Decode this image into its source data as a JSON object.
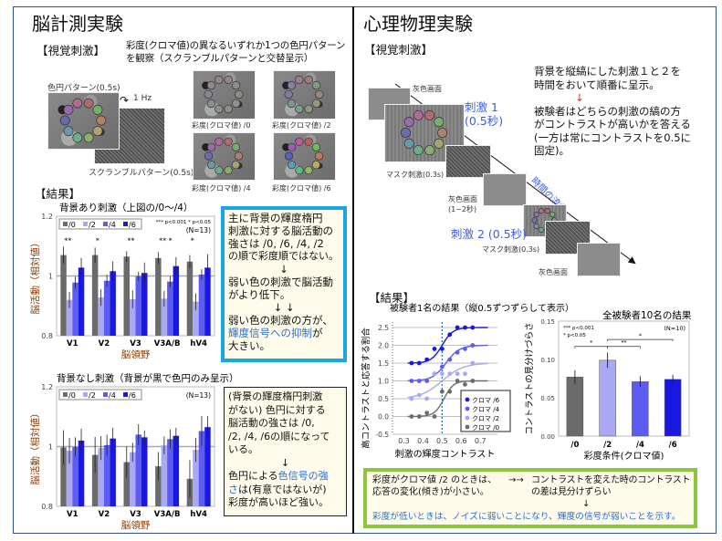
{
  "left": {
    "title": "脳計測実験",
    "stimulus_heading": "【視覚刺激】",
    "stimulus_desc_1": "彩度(クロマ値)の異なるいずれか1つの色円パターン",
    "stimulus_desc_2": "を観察（スクランブルパターンと交替呈示）",
    "color_pattern_label": "色円パターン(0.5s)",
    "frequency_label": "1 Hz",
    "scramble_label": "スクランブルパターン(0.5s)",
    "thumbnails": [
      "彩度(クロマ値) /0",
      "彩度(クロマ値) /2",
      "彩度(クロマ値) /4",
      "彩度(クロマ値) /6"
    ],
    "results_heading": "【結果】",
    "box1": {
      "line1": "主に背景の輝度楕円",
      "line2": "刺激に対する脳活動の",
      "line3": "強さは /0, /6, /4, /2",
      "line4": "の順で彩度順ではない。",
      "arrow1": "↓",
      "line5": "弱い色の刺激で脳活動",
      "line6": "がより低下。",
      "arrow2": "↓ ↓",
      "line7": "弱い色の刺激の方が、",
      "line8_blue": "輝度信号への抑制",
      "line8_rest": "が",
      "line9": "大きい。"
    },
    "box2": {
      "line1": "(背景の輝度楕円刺激",
      "line2": "がない) 色円に対する",
      "line3": "脳活動の強さは /0,",
      "line4": "/2, /4, /6の順になって",
      "line5": "いる。",
      "arrow": "↓",
      "line6_pre": "色円による",
      "line6_blue": "色信号の強",
      "line7_blue": "さ",
      "line7_rest": "は(有意ではないが)",
      "line8": "彩度が高いほど強い。"
    }
  },
  "right": {
    "title": "心理物理実験",
    "stimulus_heading": "【視覚刺激】",
    "desc1_1": "背景を縦縞にした刺激１と２を",
    "desc1_2": "時間をおいて順番に呈示。",
    "desc_arrow": "↓",
    "desc2_1": "被験者はどちらの刺激の縞の方",
    "desc2_2": "がコントラストが高いかを答える",
    "desc2_3": "(一方は常にコントラストを0.5に",
    "desc2_4": "固定)。",
    "seq": {
      "gray1": "灰色画面",
      "stim1_1": "刺激 1",
      "stim1_2": "(0.5秒)",
      "mask1": "マスク刺激(0.3s)",
      "gray2_1": "灰色画面",
      "gray2_2": "(1~2秒)",
      "time_flow": "時間の流れ",
      "stim2": "刺激 2 (0.5秒)",
      "mask2": "マスク刺激(0.3s)",
      "gray3": "灰色画面"
    },
    "results_heading": "【結果】",
    "conclusion": {
      "l1": "彩度がクロマ値 /2 のときは、",
      "l2": "応答の変化(傾き)が小さい。",
      "arrows": "→→",
      "r1": "コントラストを変えた時のコントラスト",
      "r2": "の差は見分けずらい",
      "down": "↓",
      "bottom": "彩度が低いときは、ノイズに弱いことになり、輝度の信号が弱いことを示す。"
    }
  },
  "colors": {
    "c0": "#6b6b6b",
    "c2": "#a8a8f4",
    "c4": "#5c5cf2",
    "c6": "#1818e0",
    "accent_blue_box": "#19a7e2",
    "green_box": "#8cc63f"
  },
  "chart_data": [
    {
      "type": "bar",
      "title": "背景あり刺激（上図の/0～/4）",
      "ylabel": "脳活動（相対値）",
      "xlabel": "脳領野",
      "ylim": [
        0.8,
        1.2
      ],
      "yticks": [
        "0.8",
        "1",
        "1.2"
      ],
      "categories": [
        "V1",
        "V2",
        "V3",
        "V3A/B",
        "hV4"
      ],
      "legend": [
        "/0",
        "/2",
        "/4",
        "/6"
      ],
      "annotation_p": "*** p<0.001   * p<0.05",
      "annotation_n": "(N=13)",
      "significance": [
        "**",
        "*",
        "**",
        "** *",
        "*"
      ],
      "series": [
        {
          "name": "/0",
          "values": [
            1.07,
            1.07,
            1.065,
            1.06,
            1.048
          ],
          "errors": [
            0.028,
            0.025,
            0.018,
            0.02,
            0.022
          ]
        },
        {
          "name": "/2",
          "values": [
            0.92,
            0.928,
            0.922,
            0.924,
            0.914
          ],
          "errors": [
            0.027,
            0.028,
            0.03,
            0.026,
            0.028
          ]
        },
        {
          "name": "/4",
          "values": [
            0.978,
            0.984,
            0.999,
            0.981,
            1.005
          ],
          "errors": [
            0.02,
            0.02,
            0.015,
            0.018,
            0.018
          ]
        },
        {
          "name": "/6",
          "values": [
            1.028,
            1.016,
            1.01,
            1.033,
            1.028
          ],
          "errors": [
            0.033,
            0.033,
            0.035,
            0.03,
            0.045
          ]
        }
      ]
    },
    {
      "type": "bar",
      "title": "背景なし刺激（背景が黒で色円のみ呈示）",
      "ylabel": "脳活動（相対値）",
      "xlabel": "脳領野",
      "ylim": [
        0.8,
        1.2
      ],
      "yticks": [
        "0.8",
        "1",
        "1.2"
      ],
      "categories": [
        "V1",
        "V2",
        "V3",
        "V3A/B",
        "hV4"
      ],
      "legend": [
        "/0",
        "/2",
        "/4",
        "/6"
      ],
      "annotation_n": "(N=13)",
      "series": [
        {
          "name": "/0",
          "values": [
            0.997,
            0.972,
            0.948,
            0.934,
            0.892
          ],
          "errors": [
            0.058,
            0.06,
            0.052,
            0.048,
            0.063
          ]
        },
        {
          "name": "/2",
          "values": [
            0.986,
            0.995,
            0.981,
            1.004,
            0.989
          ],
          "errors": [
            0.043,
            0.04,
            0.032,
            0.03,
            0.04
          ]
        },
        {
          "name": "/4",
          "values": [
            0.999,
            1.005,
            1.04,
            1.025,
            1.052
          ],
          "errors": [
            0.032,
            0.035,
            0.035,
            0.032,
            0.05
          ]
        },
        {
          "name": "/6",
          "values": [
            1.02,
            1.027,
            1.031,
            1.036,
            1.065
          ],
          "errors": [
            0.04,
            0.036,
            0.023,
            0.027,
            0.037
          ]
        }
      ]
    },
    {
      "type": "scatter",
      "title": "被験者1名の結果（縦0.5ずつずらして表示）",
      "xlabel": "刺激の輝度コントラスト",
      "ylabel": "高コントラストと応答する割合",
      "xlim": [
        0.24,
        0.79
      ],
      "ylim": [
        -0.5,
        2.5
      ],
      "xticks": [
        "0.3",
        "0.4",
        "0.5",
        "0.6",
        "0.7"
      ],
      "yticks": [
        "-0.5",
        "0.0",
        "0.5",
        "1.0",
        "1.5",
        "2.0",
        "2.5"
      ],
      "reference_x": 0.5,
      "legend_position": "bottom-right",
      "series": [
        {
          "name": "クロマ /6",
          "offset": 1.5,
          "center": 0.5,
          "slope": 35,
          "x": [
            0.34,
            0.38,
            0.42,
            0.46,
            0.5,
            0.54,
            0.58,
            0.62,
            0.66
          ],
          "y": [
            1.5,
            1.5,
            1.6,
            1.9,
            1.9,
            2.3,
            2.5,
            2.5,
            2.5
          ]
        },
        {
          "name": "クロマ /4",
          "offset": 1.0,
          "center": 0.52,
          "slope": 28,
          "x": [
            0.34,
            0.38,
            0.42,
            0.46,
            0.5,
            0.54,
            0.58,
            0.62,
            0.66
          ],
          "y": [
            1.0,
            1.0,
            1.0,
            1.2,
            1.4,
            1.6,
            1.8,
            1.9,
            2.0
          ]
        },
        {
          "name": "クロマ /2",
          "offset": 0.5,
          "center": 0.5,
          "slope": 18,
          "x": [
            0.34,
            0.38,
            0.42,
            0.46,
            0.5,
            0.54,
            0.58,
            0.62,
            0.66
          ],
          "y": [
            0.5,
            0.6,
            0.5,
            1.2,
            1.2,
            1.2,
            1.2,
            1.2,
            1.5
          ]
        },
        {
          "name": "クロマ /0",
          "offset": 0.0,
          "center": 0.51,
          "slope": 40,
          "x": [
            0.34,
            0.38,
            0.42,
            0.46,
            0.5,
            0.54,
            0.58,
            0.62,
            0.66
          ],
          "y": [
            0.0,
            0.0,
            0.1,
            0.0,
            0.7,
            0.7,
            1.0,
            0.9,
            1.0
          ]
        }
      ]
    },
    {
      "type": "bar",
      "title": "全被験者10名の結果",
      "xlabel": "彩度条件(クロマ値)",
      "ylabel": "コントラストの見分けづらさ",
      "ylim": [
        0,
        0.15
      ],
      "yticks": [
        "0.00",
        "0.05",
        "0.10",
        "0.15"
      ],
      "categories": [
        "/0",
        "/2",
        "/4",
        "/6"
      ],
      "values": [
        0.077,
        0.099,
        0.071,
        0.074
      ],
      "errors": [
        0.009,
        0.01,
        0.007,
        0.006
      ],
      "annotation_p1": "***   p<0.001",
      "annotation_p2": "*     p<0.05",
      "annotation_n": "(N=10)",
      "significance": [
        {
          "from": "/0",
          "to": "/2",
          "label": "*"
        },
        {
          "from": "/2",
          "to": "/4",
          "label": "**"
        },
        {
          "from": "/2",
          "to": "/6",
          "label": "*"
        }
      ]
    }
  ]
}
